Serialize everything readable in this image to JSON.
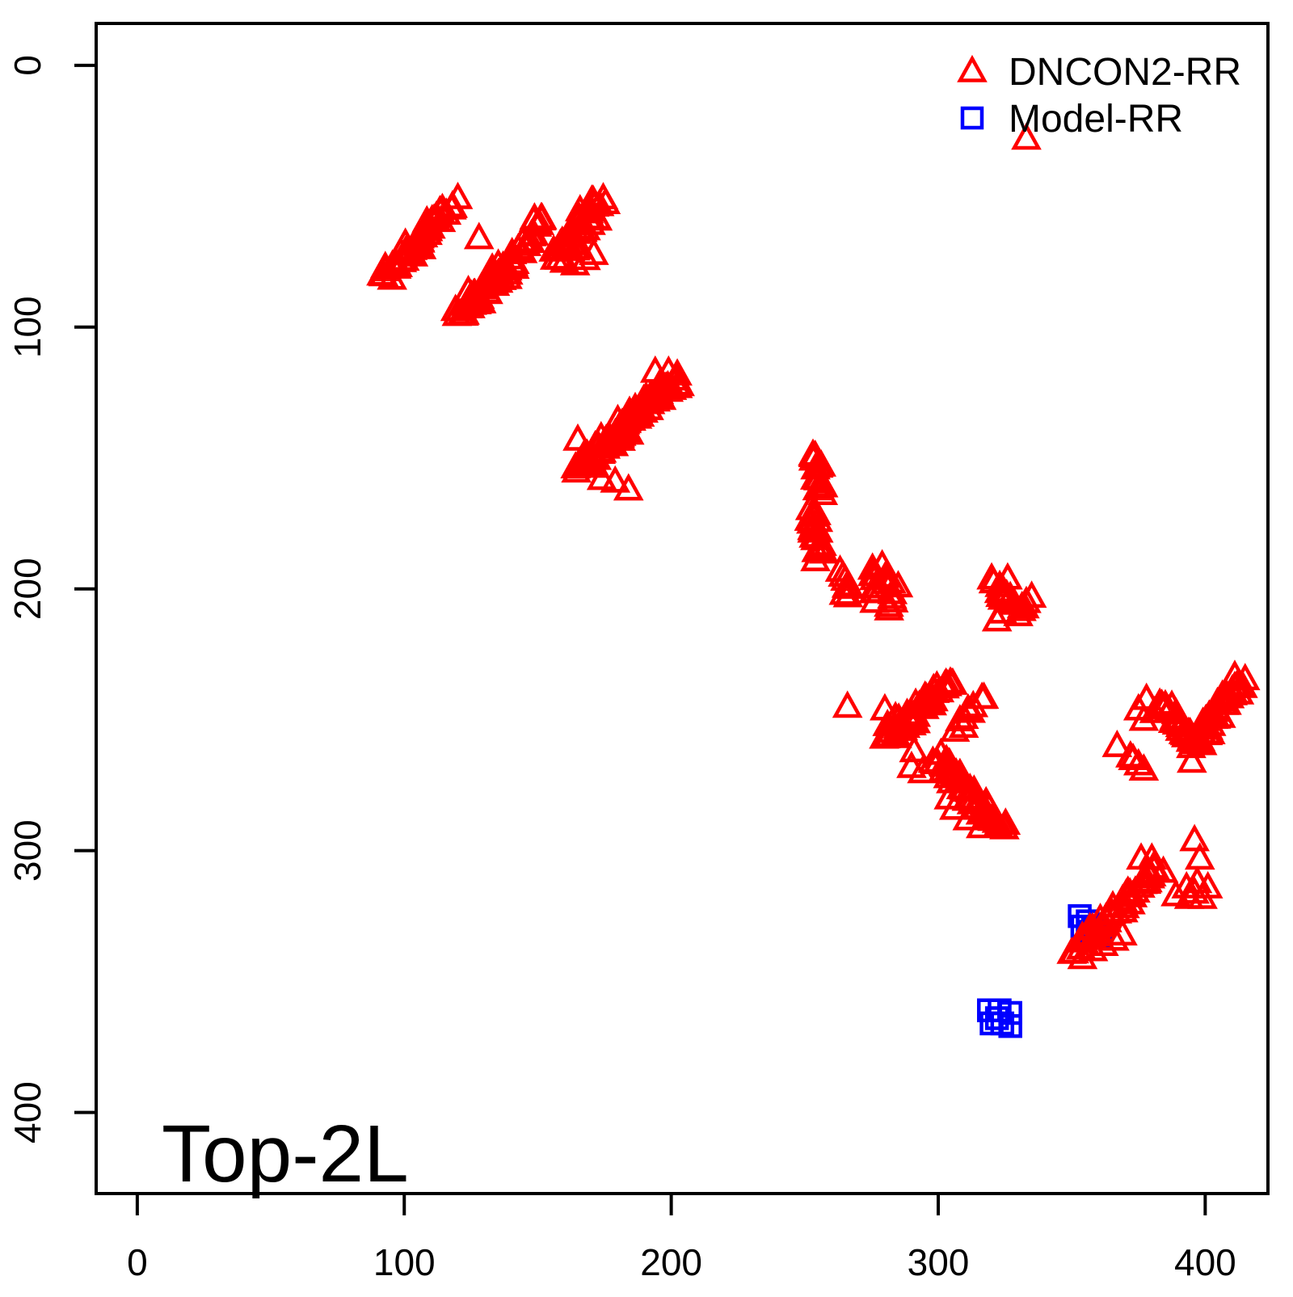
{
  "chart_data": {
    "type": "scatter",
    "title": "Top-2L",
    "xlabel": "",
    "ylabel": "",
    "x_ticks": [
      0,
      100,
      200,
      300,
      400
    ],
    "y_ticks": [
      0,
      100,
      200,
      300,
      400
    ],
    "x_range": [
      -15.4,
      423.5
    ],
    "y_range": [
      -16.0,
      431.0
    ],
    "y_inverted": true,
    "grid": false,
    "legend_position": "top-right",
    "legend": [
      {
        "label": "DNCON2-RR",
        "marker": "triangle",
        "color": "#FF0000"
      },
      {
        "label": "Model-RR",
        "marker": "square",
        "color": "#0000FF"
      }
    ],
    "series": [
      {
        "name": "Model-RR",
        "marker": "square",
        "color": "#0000FF",
        "clusters": [
          {
            "kind": "pts",
            "p": [
              [
                353,
                325
              ],
              [
                356,
                327
              ],
              [
                358,
                330
              ],
              [
                360,
                332
              ],
              [
                354,
                329
              ],
              [
                357,
                331
              ],
              [
                361,
                333
              ]
            ]
          },
          {
            "kind": "pts",
            "p": [
              [
                319,
                361
              ],
              [
                323,
                361
              ],
              [
                327,
                362
              ],
              [
                320,
                366
              ],
              [
                324,
                366
              ],
              [
                327,
                367
              ],
              [
                322,
                364
              ]
            ]
          }
        ]
      },
      {
        "name": "DNCON2-RR",
        "marker": "triangle",
        "color": "#FF0000",
        "clusters": [
          {
            "kind": "seg",
            "a": [
              93,
              81
            ],
            "b": [
              118,
              53
            ],
            "n": 45,
            "j": [
              3,
              2.5
            ],
            "seed": 11
          },
          {
            "kind": "pts",
            "p": [
              [
                128,
                66
              ]
            ]
          },
          {
            "kind": "seg",
            "a": [
              121,
              96
            ],
            "b": [
              137,
              77
            ],
            "n": 32,
            "j": [
              2.5,
              2.5
            ],
            "seed": 12
          },
          {
            "kind": "seg",
            "a": [
              135,
              84
            ],
            "b": [
              152,
              57
            ],
            "n": 28,
            "j": [
              2,
              2
            ],
            "seed": 13
          },
          {
            "kind": "blob",
            "c": [
              126,
              90
            ],
            "r": [
              4,
              5
            ],
            "n": 14,
            "seed": 14
          },
          {
            "kind": "seg",
            "a": [
              158,
              73
            ],
            "b": [
              173,
              52
            ],
            "n": 36,
            "j": [
              3,
              3
            ],
            "seed": 15
          },
          {
            "kind": "pts",
            "p": [
              [
                160,
                75
              ],
              [
                164,
                76
              ],
              [
                168,
                74
              ],
              [
                171,
                72
              ],
              [
                161,
                70
              ]
            ]
          },
          {
            "kind": "seg",
            "a": [
              166,
              154
            ],
            "b": [
              185,
              135
            ],
            "n": 45,
            "j": [
              3,
              2.5
            ],
            "seed": 16
          },
          {
            "kind": "seg",
            "a": [
              183,
              137
            ],
            "b": [
              202,
              120
            ],
            "n": 42,
            "j": [
              2.5,
              2.5
            ],
            "seed": 17
          },
          {
            "kind": "pts",
            "p": [
              [
                165,
                143
              ],
              [
                184,
                162
              ],
              [
                194,
                117
              ],
              [
                199,
                117
              ],
              [
                202,
                120
              ],
              [
                174,
                158
              ],
              [
                179,
                159
              ]
            ]
          },
          {
            "kind": "seg",
            "a": [
              254,
              148
            ],
            "b": [
              256,
              164
            ],
            "n": 14,
            "j": [
              1.5,
              1.5
            ],
            "seed": 18
          },
          {
            "kind": "seg",
            "a": [
              253,
              171
            ],
            "b": [
              256,
              186
            ],
            "n": 20,
            "j": [
              1.8,
              1.5
            ],
            "seed": 19
          },
          {
            "kind": "pts",
            "p": [
              [
                254,
                189
              ],
              [
                255,
                174
              ],
              [
                253,
                172
              ]
            ]
          },
          {
            "kind": "seg",
            "a": [
              264,
              194
            ],
            "b": [
              266,
              202
            ],
            "n": 8,
            "j": [
              1.5,
              1.2
            ],
            "seed": 20
          },
          {
            "kind": "seg",
            "a": [
              276,
              193
            ],
            "b": [
              277,
              204
            ],
            "n": 7,
            "j": [
              1.2,
              1.2
            ],
            "seed": 21
          },
          {
            "kind": "seg",
            "a": [
              281,
              196
            ],
            "b": [
              283,
              207
            ],
            "n": 8,
            "j": [
              1.5,
              1.5
            ],
            "seed": 22
          },
          {
            "kind": "pts",
            "p": [
              [
                285,
                199
              ],
              [
                279,
                191
              ]
            ]
          },
          {
            "kind": "seg",
            "a": [
              322,
              198
            ],
            "b": [
              331,
              208
            ],
            "n": 14,
            "j": [
              2.5,
              2
            ],
            "seed": 23
          },
          {
            "kind": "pts",
            "p": [
              [
                320,
                196
              ],
              [
                326,
                196
              ],
              [
                333,
                205
              ],
              [
                330,
                210
              ],
              [
                324,
                209
              ],
              [
                335,
                203
              ],
              [
                322,
                212
              ]
            ]
          },
          {
            "kind": "pts",
            "p": [
              [
                266,
                245
              ]
            ]
          },
          {
            "kind": "seg",
            "a": [
              281,
              257
            ],
            "b": [
              305,
              235
            ],
            "n": 40,
            "j": [
              2.5,
              2
            ],
            "seed": 24
          },
          {
            "kind": "pts",
            "p": [
              [
                280,
                246
              ],
              [
                284,
                249
              ],
              [
                281,
                252
              ]
            ]
          },
          {
            "kind": "seg",
            "a": [
              307,
              254
            ],
            "b": [
              317,
              241
            ],
            "n": 9,
            "j": [
              1.5,
              1.5
            ],
            "seed": 25
          },
          {
            "kind": "pts",
            "p": [
              [
                290,
                268
              ],
              [
                294,
                270
              ],
              [
                298,
                266
              ],
              [
                301,
                263
              ],
              [
                291,
                262
              ]
            ]
          },
          {
            "kind": "seg",
            "a": [
              301,
              266
            ],
            "b": [
              323,
              291
            ],
            "n": 45,
            "j": [
              2.5,
              2
            ],
            "seed": 26
          },
          {
            "kind": "pts",
            "p": [
              [
                306,
                284
              ],
              [
                311,
                288
              ],
              [
                316,
                291
              ],
              [
                320,
                288
              ],
              [
                304,
                280
              ]
            ]
          },
          {
            "kind": "seg",
            "a": [
              384,
              243
            ],
            "b": [
              396,
              259
            ],
            "n": 24,
            "j": [
              2,
              1.8
            ],
            "seed": 27
          },
          {
            "kind": "seg",
            "a": [
              396,
              259
            ],
            "b": [
              413,
              235
            ],
            "n": 40,
            "j": [
              2.5,
              2.2
            ],
            "seed": 28
          },
          {
            "kind": "pts",
            "p": [
              [
                375,
                246
              ],
              [
                378,
                242
              ],
              [
                381,
                247
              ],
              [
                377,
                250
              ]
            ]
          },
          {
            "kind": "pts",
            "p": [
              [
                395,
                266
              ]
            ]
          },
          {
            "kind": "pts",
            "p": [
              [
                367,
                260
              ],
              [
                372,
                264
              ],
              [
                375,
                267
              ],
              [
                377,
                269
              ],
              [
                373,
                265
              ]
            ]
          },
          {
            "kind": "pts",
            "p": [
              [
                376,
                303
              ],
              [
                380,
                303
              ]
            ]
          },
          {
            "kind": "pts",
            "p": [
              [
                396,
                296
              ],
              [
                398,
                303
              ]
            ]
          },
          {
            "kind": "pts",
            "p": [
              [
                389,
                317
              ],
              [
                393,
                314
              ],
              [
                396,
                316
              ],
              [
                399,
                318
              ],
              [
                401,
                314
              ],
              [
                397,
                312
              ],
              [
                394,
                318
              ]
            ]
          },
          {
            "kind": "seg",
            "a": [
              352,
              337
            ],
            "b": [
              383,
              306
            ],
            "n": 42,
            "j": [
              2.2,
              2.2
            ],
            "seed": 29
          },
          {
            "kind": "pts",
            "p": [
              [
                350,
                339
              ],
              [
                354,
                341
              ],
              [
                358,
                338
              ],
              [
                362,
                336
              ],
              [
                366,
                334
              ],
              [
                369,
                332
              ]
            ]
          },
          {
            "kind": "pts",
            "p": [
              [
                333,
                28
              ]
            ]
          }
        ]
      }
    ]
  }
}
